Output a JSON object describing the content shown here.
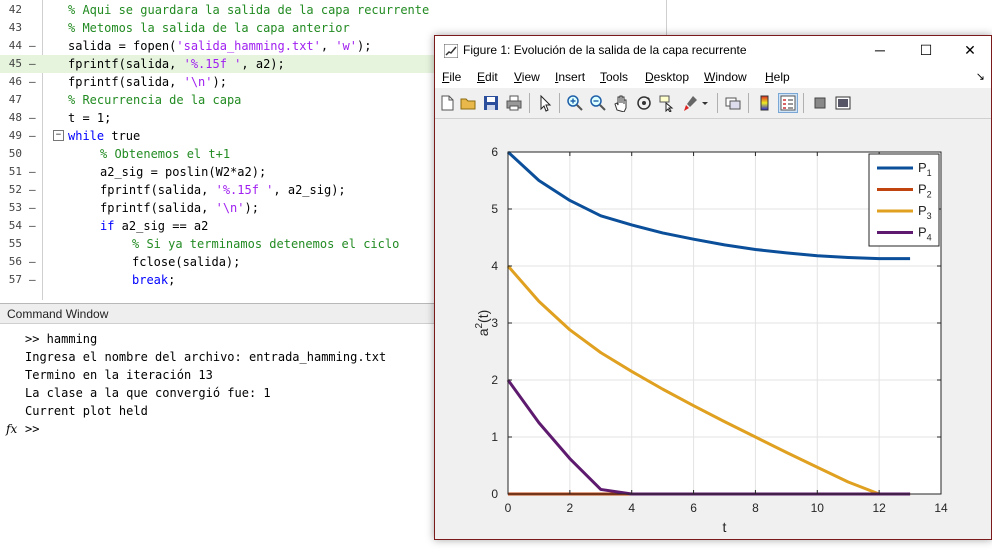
{
  "editor": {
    "lines": [
      {
        "num": "42",
        "dash": false,
        "indent": 0,
        "fold": false,
        "highlight": false,
        "tokens": [
          [
            "cm",
            "% Aqui se guardara la salida de la capa recurrente"
          ]
        ]
      },
      {
        "num": "43",
        "dash": false,
        "indent": 0,
        "fold": false,
        "highlight": false,
        "tokens": [
          [
            "cm",
            "% Metomos la salida de la capa anterior"
          ]
        ]
      },
      {
        "num": "44",
        "dash": true,
        "indent": 0,
        "fold": false,
        "highlight": false,
        "tokens": [
          [
            "tx",
            "salida = fopen("
          ],
          [
            "str",
            "'salida_hamming.txt'"
          ],
          [
            "tx",
            ", "
          ],
          [
            "str",
            "'w'"
          ],
          [
            "tx",
            ");"
          ]
        ]
      },
      {
        "num": "45",
        "dash": true,
        "indent": 0,
        "fold": false,
        "highlight": true,
        "tokens": [
          [
            "tx",
            "fprintf(salida, "
          ],
          [
            "str",
            "'%.15f '"
          ],
          [
            "tx",
            ", a2);"
          ]
        ]
      },
      {
        "num": "46",
        "dash": true,
        "indent": 0,
        "fold": false,
        "highlight": false,
        "tokens": [
          [
            "tx",
            "fprintf(salida, "
          ],
          [
            "str",
            "'\\n'"
          ],
          [
            "tx",
            ");"
          ]
        ]
      },
      {
        "num": "47",
        "dash": false,
        "indent": 0,
        "fold": false,
        "highlight": false,
        "tokens": [
          [
            "cm",
            "% Recurrencia de la capa"
          ]
        ]
      },
      {
        "num": "48",
        "dash": true,
        "indent": 0,
        "fold": false,
        "highlight": false,
        "tokens": [
          [
            "tx",
            "t = 1;"
          ]
        ]
      },
      {
        "num": "49",
        "dash": true,
        "indent": 0,
        "fold": true,
        "highlight": false,
        "tokens": [
          [
            "kw",
            "while"
          ],
          [
            "tx",
            " true"
          ]
        ]
      },
      {
        "num": "50",
        "dash": false,
        "indent": 1,
        "fold": false,
        "highlight": false,
        "tokens": [
          [
            "cm",
            "% Obtenemos el t+1"
          ]
        ]
      },
      {
        "num": "51",
        "dash": true,
        "indent": 1,
        "fold": false,
        "highlight": false,
        "tokens": [
          [
            "tx",
            "a2_sig = poslin(W2*a2);"
          ]
        ]
      },
      {
        "num": "52",
        "dash": true,
        "indent": 1,
        "fold": false,
        "highlight": false,
        "tokens": [
          [
            "tx",
            "fprintf(salida, "
          ],
          [
            "str",
            "'%.15f '"
          ],
          [
            "tx",
            ", a2_sig);"
          ]
        ]
      },
      {
        "num": "53",
        "dash": true,
        "indent": 1,
        "fold": false,
        "highlight": false,
        "tokens": [
          [
            "tx",
            "fprintf(salida, "
          ],
          [
            "str",
            "'\\n'"
          ],
          [
            "tx",
            ");"
          ]
        ]
      },
      {
        "num": "54",
        "dash": true,
        "indent": 1,
        "fold": false,
        "highlight": false,
        "tokens": [
          [
            "kw",
            "if"
          ],
          [
            "tx",
            " a2_sig == a2"
          ]
        ]
      },
      {
        "num": "55",
        "dash": false,
        "indent": 2,
        "fold": false,
        "highlight": false,
        "tokens": [
          [
            "cm",
            "% Si ya terminamos detenemos el ciclo"
          ]
        ]
      },
      {
        "num": "56",
        "dash": true,
        "indent": 2,
        "fold": false,
        "highlight": false,
        "tokens": [
          [
            "tx",
            "fclose(salida);"
          ]
        ]
      },
      {
        "num": "57",
        "dash": true,
        "indent": 2,
        "fold": false,
        "highlight": false,
        "tokens": [
          [
            "kw",
            "break"
          ],
          [
            "tx",
            ";"
          ]
        ]
      }
    ]
  },
  "command_window": {
    "title": "Command Window",
    "lines": [
      ">> hamming",
      "Ingresa el nombre del archivo: entrada_hamming.txt",
      "Termino en la iteración 13",
      "La clase a la que convergió fue: 1",
      "Current plot held"
    ],
    "prompt": ">>",
    "fx_label": "fx"
  },
  "figure": {
    "title": "Figure 1: Evolución de la salida de la capa recurrente",
    "minimize": "─",
    "maximize": "☐",
    "close": "✕",
    "menu": [
      {
        "label": "File",
        "hotkey": "F"
      },
      {
        "label": "Edit",
        "hotkey": "E"
      },
      {
        "label": "View",
        "hotkey": "V"
      },
      {
        "label": "Insert",
        "hotkey": "I"
      },
      {
        "label": "Tools",
        "hotkey": "T"
      },
      {
        "label": "Desktop",
        "hotkey": "D"
      },
      {
        "label": "Window",
        "hotkey": "W"
      },
      {
        "label": "Help",
        "hotkey": "H"
      }
    ],
    "menu_overflow": "↘",
    "toolbar": [
      "new-figure-icon",
      "open-file-icon",
      "save-icon",
      "print-icon",
      "pointer-icon",
      "zoom-in-icon",
      "zoom-out-icon",
      "pan-icon",
      "rotate-3d-icon",
      "data-cursor-icon",
      "brush-icon",
      "link-plot-icon",
      "colorbar-icon",
      "legend-icon",
      "hide-plot-tools-icon",
      "show-plot-tools-icon"
    ]
  },
  "chart_data": {
    "type": "line",
    "xlabel": "t",
    "ylabel_base": "a",
    "ylabel_sup": "2",
    "ylabel_tail": "(t)",
    "xlim": [
      0,
      14
    ],
    "ylim": [
      0,
      6
    ],
    "xticks": [
      0,
      2,
      4,
      6,
      8,
      10,
      12,
      14
    ],
    "yticks": [
      0,
      1,
      2,
      3,
      4,
      5,
      6
    ],
    "grid": true,
    "legend_position": "top-right",
    "series": [
      {
        "name": "P",
        "sub": "1",
        "color": "#0b4f9a",
        "x": [
          0,
          1,
          2,
          3,
          4,
          5,
          6,
          7,
          8,
          9,
          10,
          11,
          12,
          13
        ],
        "y": [
          6,
          5.5,
          5.15,
          4.88,
          4.72,
          4.58,
          4.47,
          4.37,
          4.29,
          4.23,
          4.18,
          4.15,
          4.13,
          4.13
        ]
      },
      {
        "name": "P",
        "sub": "2",
        "color": "#c1440e",
        "x": [
          0,
          1,
          2,
          3,
          4,
          5,
          6,
          7,
          8,
          9,
          10,
          11,
          12,
          13
        ],
        "y": [
          0,
          0,
          0,
          0,
          0,
          0,
          0,
          0,
          0,
          0,
          0,
          0,
          0,
          0
        ]
      },
      {
        "name": "P",
        "sub": "3",
        "color": "#e0a020",
        "x": [
          0,
          1,
          2,
          3,
          4,
          5,
          6,
          7,
          8,
          9,
          10,
          11,
          12,
          13
        ],
        "y": [
          4,
          3.38,
          2.88,
          2.48,
          2.15,
          1.84,
          1.55,
          1.27,
          1.0,
          0.73,
          0.47,
          0.21,
          0,
          0
        ]
      },
      {
        "name": "P",
        "sub": "4",
        "color": "#5e1a6e",
        "x": [
          0,
          1,
          2,
          3,
          4,
          5,
          6,
          7,
          8,
          9,
          10,
          11,
          12,
          13
        ],
        "y": [
          2,
          1.25,
          0.62,
          0.08,
          0,
          0,
          0,
          0,
          0,
          0,
          0,
          0,
          0,
          0
        ]
      }
    ]
  }
}
